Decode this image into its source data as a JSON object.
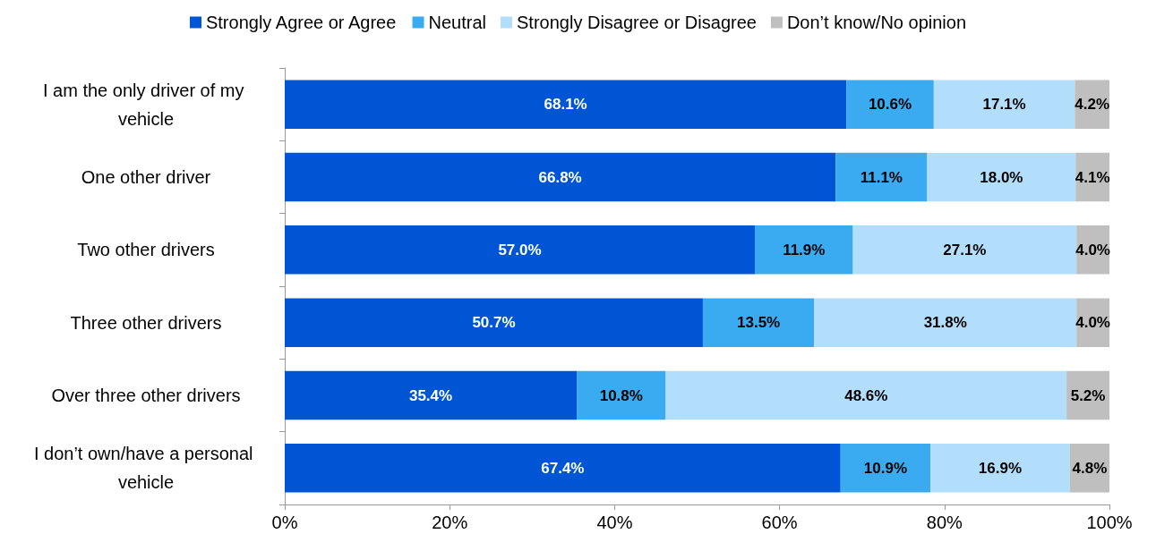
{
  "chart_data": {
    "type": "bar",
    "orientation": "horizontal",
    "stacked": true,
    "legend": "top",
    "grid": false,
    "categories": [
      "I am the only driver of my vehicle",
      "One other driver",
      "Two other drivers",
      "Three other drivers",
      "Over three other drivers",
      "I don’t own/have a personal vehicle"
    ],
    "xlim": [
      0,
      100
    ],
    "xticks": [
      {
        "value": 0,
        "label": "0%"
      },
      {
        "value": 20,
        "label": "20%"
      },
      {
        "value": 40,
        "label": "40%"
      },
      {
        "value": 60,
        "label": "60%"
      },
      {
        "value": 80,
        "label": "80%"
      },
      {
        "value": 100,
        "label": "100%"
      }
    ],
    "series": [
      {
        "name": "Strongly Agree or Agree",
        "color": "#0055d4",
        "values": [
          68.1,
          66.8,
          57.0,
          50.7,
          35.4,
          67.4
        ],
        "value_labels": [
          "68.1%",
          "66.8%",
          "57.0%",
          "50.7%",
          "35.4%",
          "67.4%"
        ]
      },
      {
        "name": "Neutral",
        "color": "#3aabf0",
        "values": [
          10.6,
          11.1,
          11.9,
          13.5,
          10.8,
          10.9
        ],
        "value_labels": [
          "10.6%",
          "11.1%",
          "11.9%",
          "13.5%",
          "10.8%",
          "10.9%"
        ]
      },
      {
        "name": "Strongly Disagree or Disagree",
        "color": "#b3defb",
        "values": [
          17.1,
          18.0,
          27.1,
          31.8,
          48.6,
          16.9
        ],
        "value_labels": [
          "17.1%",
          "18.0%",
          "27.1%",
          "31.8%",
          "48.6%",
          "16.9%"
        ]
      },
      {
        "name": "Don’t know/No opinion",
        "color": "#bfbfbf",
        "values": [
          4.2,
          4.1,
          4.0,
          4.0,
          5.2,
          4.8
        ],
        "value_labels": [
          "4.2%",
          "4.1%",
          "4.0%",
          "4.0%",
          "5.2%",
          "4.8%"
        ]
      }
    ]
  }
}
